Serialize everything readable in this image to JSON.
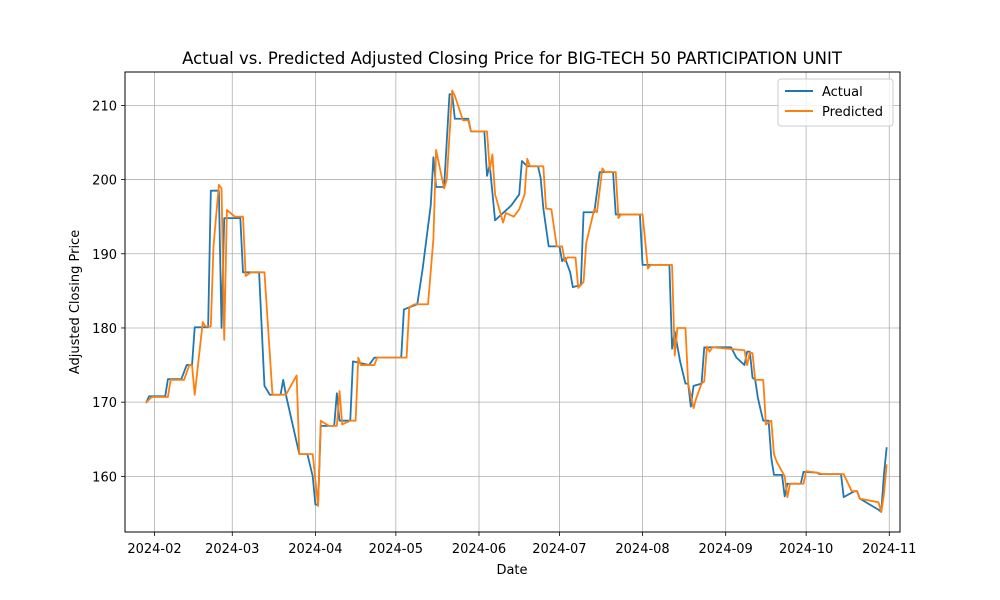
{
  "chart_data": {
    "type": "line",
    "title": "Actual vs. Predicted Adjusted Closing Price for BIG-TECH 50 PARTICIPATION UNIT",
    "xlabel": "Date",
    "ylabel": "Adjusted Closing Price",
    "xlim": [
      "2024-01-21",
      "2024-11-05"
    ],
    "ylim": [
      152.5,
      214.5
    ],
    "x_ticks": [
      "2024-02-01",
      "2024-03-01",
      "2024-04-01",
      "2024-05-01",
      "2024-06-01",
      "2024-07-01",
      "2024-08-01",
      "2024-09-01",
      "2024-10-01",
      "2024-11-01"
    ],
    "x_tick_labels": [
      "2024-02",
      "2024-03",
      "2024-04",
      "2024-05",
      "2024-06",
      "2024-07",
      "2024-08",
      "2024-09",
      "2024-10",
      "2024-11"
    ],
    "y_ticks": [
      160,
      170,
      180,
      190,
      200,
      210
    ],
    "y_tick_labels": [
      "160",
      "170",
      "180",
      "190",
      "200",
      "210"
    ],
    "grid": true,
    "legend_position": "top-right",
    "series": [
      {
        "name": "Actual",
        "color": "#1f77b4",
        "points": [
          [
            "2024-01-29",
            170.0
          ],
          [
            "2024-01-30",
            170.8
          ],
          [
            "2024-02-05",
            170.8
          ],
          [
            "2024-02-06",
            173.1
          ],
          [
            "2024-02-11",
            173.1
          ],
          [
            "2024-02-13",
            175.0
          ],
          [
            "2024-02-15",
            175.0
          ],
          [
            "2024-02-16",
            180.1
          ],
          [
            "2024-02-19",
            180.1
          ],
          [
            "2024-02-21",
            180.1
          ],
          [
            "2024-02-22",
            198.5
          ],
          [
            "2024-02-25",
            198.5
          ],
          [
            "2024-02-26",
            180.0
          ],
          [
            "2024-02-27",
            194.8
          ],
          [
            "2024-03-04",
            194.8
          ],
          [
            "2024-03-05",
            187.5
          ],
          [
            "2024-03-11",
            187.5
          ],
          [
            "2024-03-13",
            172.2
          ],
          [
            "2024-03-15",
            171.0
          ],
          [
            "2024-03-19",
            171.0
          ],
          [
            "2024-03-20",
            173.0
          ],
          [
            "2024-03-21",
            171.0
          ],
          [
            "2024-03-26",
            163.0
          ],
          [
            "2024-03-29",
            163.0
          ],
          [
            "2024-03-31",
            160.0
          ],
          [
            "2024-04-01",
            156.2
          ],
          [
            "2024-04-02",
            156.2
          ],
          [
            "2024-04-03",
            166.8
          ],
          [
            "2024-04-08",
            166.8
          ],
          [
            "2024-04-09",
            171.2
          ],
          [
            "2024-04-10",
            167.5
          ],
          [
            "2024-04-14",
            167.5
          ],
          [
            "2024-04-15",
            175.5
          ],
          [
            "2024-04-21",
            175.0
          ],
          [
            "2024-04-23",
            176.0
          ],
          [
            "2024-05-03",
            176.0
          ],
          [
            "2024-05-04",
            182.5
          ],
          [
            "2024-05-09",
            183.2
          ],
          [
            "2024-05-11",
            188.0
          ],
          [
            "2024-05-14",
            196.5
          ],
          [
            "2024-05-15",
            203.0
          ],
          [
            "2024-05-16",
            199.0
          ],
          [
            "2024-05-19",
            199.0
          ],
          [
            "2024-05-21",
            211.5
          ],
          [
            "2024-05-22",
            211.5
          ],
          [
            "2024-05-23",
            208.2
          ],
          [
            "2024-05-28",
            208.2
          ],
          [
            "2024-05-29",
            206.5
          ],
          [
            "2024-06-03",
            206.5
          ],
          [
            "2024-06-04",
            200.5
          ],
          [
            "2024-06-05",
            202.0
          ],
          [
            "2024-06-07",
            194.5
          ],
          [
            "2024-06-10",
            195.5
          ],
          [
            "2024-06-13",
            196.5
          ],
          [
            "2024-06-16",
            198.0
          ],
          [
            "2024-06-17",
            202.5
          ],
          [
            "2024-06-19",
            201.8
          ],
          [
            "2024-06-23",
            201.8
          ],
          [
            "2024-06-24",
            200.2
          ],
          [
            "2024-06-25",
            196.1
          ],
          [
            "2024-06-27",
            191.0
          ],
          [
            "2024-07-01",
            191.0
          ],
          [
            "2024-07-02",
            189.0
          ],
          [
            "2024-07-03",
            189.5
          ],
          [
            "2024-07-05",
            187.5
          ],
          [
            "2024-07-06",
            185.5
          ],
          [
            "2024-07-09",
            185.8
          ],
          [
            "2024-07-10",
            195.6
          ],
          [
            "2024-07-14",
            195.6
          ],
          [
            "2024-07-16",
            201.0
          ],
          [
            "2024-07-21",
            201.0
          ],
          [
            "2024-07-22",
            195.3
          ],
          [
            "2024-07-31",
            195.3
          ],
          [
            "2024-08-01",
            188.5
          ],
          [
            "2024-08-03",
            188.5
          ],
          [
            "2024-08-11",
            188.5
          ],
          [
            "2024-08-12",
            177.2
          ],
          [
            "2024-08-13",
            179.5
          ],
          [
            "2024-08-15",
            175.5
          ],
          [
            "2024-08-17",
            172.5
          ],
          [
            "2024-08-18",
            172.5
          ],
          [
            "2024-08-19",
            169.4
          ],
          [
            "2024-08-20",
            172.2
          ],
          [
            "2024-08-23",
            172.5
          ],
          [
            "2024-08-24",
            177.4
          ],
          [
            "2024-08-25",
            177.3
          ],
          [
            "2024-08-26",
            177.4
          ],
          [
            "2024-09-03",
            177.4
          ],
          [
            "2024-09-05",
            176.0
          ],
          [
            "2024-09-08",
            175.0
          ],
          [
            "2024-09-09",
            176.8
          ],
          [
            "2024-09-10",
            176.8
          ],
          [
            "2024-09-11",
            173.3
          ],
          [
            "2024-09-12",
            173.0
          ],
          [
            "2024-09-13",
            170.6
          ],
          [
            "2024-09-14",
            169.0
          ],
          [
            "2024-09-15",
            167.5
          ],
          [
            "2024-09-17",
            167.5
          ],
          [
            "2024-09-18",
            162.5
          ],
          [
            "2024-09-19",
            160.2
          ],
          [
            "2024-09-22",
            160.2
          ],
          [
            "2024-09-23",
            157.3
          ],
          [
            "2024-09-24",
            159.0
          ],
          [
            "2024-09-29",
            159.0
          ],
          [
            "2024-09-30",
            160.6
          ],
          [
            "2024-10-05",
            160.5
          ],
          [
            "2024-10-06",
            160.3
          ],
          [
            "2024-10-14",
            160.3
          ],
          [
            "2024-10-15",
            157.2
          ],
          [
            "2024-10-19",
            158.0
          ],
          [
            "2024-10-20",
            158.0
          ],
          [
            "2024-10-21",
            157.0
          ],
          [
            "2024-10-28",
            155.5
          ],
          [
            "2024-10-29",
            155.2
          ],
          [
            "2024-10-30",
            160.2
          ],
          [
            "2024-10-31",
            163.8
          ]
        ]
      },
      {
        "name": "Predicted",
        "color": "#ff7f0e",
        "points": [
          [
            "2024-01-29",
            170.0
          ],
          [
            "2024-01-31",
            170.7
          ],
          [
            "2024-02-06",
            170.7
          ],
          [
            "2024-02-07",
            173.0
          ],
          [
            "2024-02-12",
            173.0
          ],
          [
            "2024-02-14",
            175.0
          ],
          [
            "2024-02-15",
            175.0
          ],
          [
            "2024-02-16",
            171.0
          ],
          [
            "2024-02-19",
            180.8
          ],
          [
            "2024-02-20",
            180.2
          ],
          [
            "2024-02-22",
            180.2
          ],
          [
            "2024-02-23",
            191.0
          ],
          [
            "2024-02-25",
            199.3
          ],
          [
            "2024-02-26",
            198.8
          ],
          [
            "2024-02-27",
            178.4
          ],
          [
            "2024-02-28",
            195.9
          ],
          [
            "2024-03-02",
            195.0
          ],
          [
            "2024-03-05",
            195.0
          ],
          [
            "2024-03-06",
            187.0
          ],
          [
            "2024-03-08",
            187.5
          ],
          [
            "2024-03-13",
            187.5
          ],
          [
            "2024-03-16",
            171.0
          ],
          [
            "2024-03-21",
            171.0
          ],
          [
            "2024-03-25",
            173.6
          ],
          [
            "2024-03-26",
            163.0
          ],
          [
            "2024-03-31",
            163.0
          ],
          [
            "2024-04-02",
            156.0
          ],
          [
            "2024-04-03",
            167.5
          ],
          [
            "2024-04-06",
            166.8
          ],
          [
            "2024-04-09",
            166.8
          ],
          [
            "2024-04-10",
            171.5
          ],
          [
            "2024-04-11",
            167.0
          ],
          [
            "2024-04-14",
            167.5
          ],
          [
            "2024-04-16",
            167.5
          ],
          [
            "2024-04-17",
            176.0
          ],
          [
            "2024-04-18",
            175.0
          ],
          [
            "2024-04-23",
            175.0
          ],
          [
            "2024-04-24",
            176.0
          ],
          [
            "2024-05-05",
            176.0
          ],
          [
            "2024-05-06",
            182.8
          ],
          [
            "2024-05-08",
            183.2
          ],
          [
            "2024-05-13",
            183.2
          ],
          [
            "2024-05-15",
            192.0
          ],
          [
            "2024-05-16",
            204.0
          ],
          [
            "2024-05-19",
            198.8
          ],
          [
            "2024-05-20",
            200.0
          ],
          [
            "2024-05-22",
            212.0
          ],
          [
            "2024-05-23",
            211.3
          ],
          [
            "2024-05-26",
            208.0
          ],
          [
            "2024-05-28",
            208.0
          ],
          [
            "2024-05-29",
            206.5
          ],
          [
            "2024-06-03",
            206.5
          ],
          [
            "2024-06-04",
            206.5
          ],
          [
            "2024-06-05",
            201.3
          ],
          [
            "2024-06-06",
            203.4
          ],
          [
            "2024-06-07",
            198.0
          ],
          [
            "2024-06-10",
            194.2
          ],
          [
            "2024-06-11",
            195.5
          ],
          [
            "2024-06-14",
            195.0
          ],
          [
            "2024-06-16",
            196.0
          ],
          [
            "2024-06-18",
            198.0
          ],
          [
            "2024-06-19",
            202.8
          ],
          [
            "2024-06-20",
            201.8
          ],
          [
            "2024-06-24",
            201.8
          ],
          [
            "2024-06-25",
            201.8
          ],
          [
            "2024-06-26",
            196.1
          ],
          [
            "2024-06-28",
            196.0
          ],
          [
            "2024-06-30",
            191.0
          ],
          [
            "2024-07-02",
            191.0
          ],
          [
            "2024-07-03",
            189.0
          ],
          [
            "2024-07-04",
            189.5
          ],
          [
            "2024-07-07",
            189.5
          ],
          [
            "2024-07-08",
            185.4
          ],
          [
            "2024-07-10",
            186.2
          ],
          [
            "2024-07-11",
            191.5
          ],
          [
            "2024-07-14",
            196.0
          ],
          [
            "2024-07-15",
            195.6
          ],
          [
            "2024-07-17",
            201.5
          ],
          [
            "2024-07-18",
            201.0
          ],
          [
            "2024-07-22",
            201.0
          ],
          [
            "2024-07-23",
            194.8
          ],
          [
            "2024-07-24",
            195.3
          ],
          [
            "2024-08-01",
            195.3
          ],
          [
            "2024-08-03",
            188.0
          ],
          [
            "2024-08-04",
            188.5
          ],
          [
            "2024-08-12",
            188.5
          ],
          [
            "2024-08-13",
            176.3
          ],
          [
            "2024-08-14",
            180.0
          ],
          [
            "2024-08-17",
            180.0
          ],
          [
            "2024-08-18",
            172.5
          ],
          [
            "2024-08-20",
            169.2
          ],
          [
            "2024-08-21",
            170.5
          ],
          [
            "2024-08-23",
            172.5
          ],
          [
            "2024-08-24",
            172.8
          ],
          [
            "2024-08-25",
            177.5
          ],
          [
            "2024-08-26",
            176.8
          ],
          [
            "2024-08-27",
            177.4
          ],
          [
            "2024-09-08",
            177.0
          ],
          [
            "2024-09-09",
            175.0
          ],
          [
            "2024-09-10",
            176.7
          ],
          [
            "2024-09-11",
            176.6
          ],
          [
            "2024-09-12",
            173.0
          ],
          [
            "2024-09-15",
            173.0
          ],
          [
            "2024-09-16",
            167.0
          ],
          [
            "2024-09-18",
            167.5
          ],
          [
            "2024-09-19",
            163.0
          ],
          [
            "2024-09-20",
            162.0
          ],
          [
            "2024-09-23",
            160.0
          ],
          [
            "2024-09-24",
            157.2
          ],
          [
            "2024-09-25",
            159.0
          ],
          [
            "2024-09-30",
            159.0
          ],
          [
            "2024-10-01",
            160.7
          ],
          [
            "2024-10-05",
            160.5
          ],
          [
            "2024-10-07",
            160.3
          ],
          [
            "2024-10-15",
            160.3
          ],
          [
            "2024-10-18",
            158.0
          ],
          [
            "2024-10-20",
            158.0
          ],
          [
            "2024-10-21",
            157.0
          ],
          [
            "2024-10-28",
            156.5
          ],
          [
            "2024-10-29",
            155.2
          ],
          [
            "2024-10-30",
            157.5
          ],
          [
            "2024-10-31",
            161.5
          ]
        ]
      }
    ]
  }
}
